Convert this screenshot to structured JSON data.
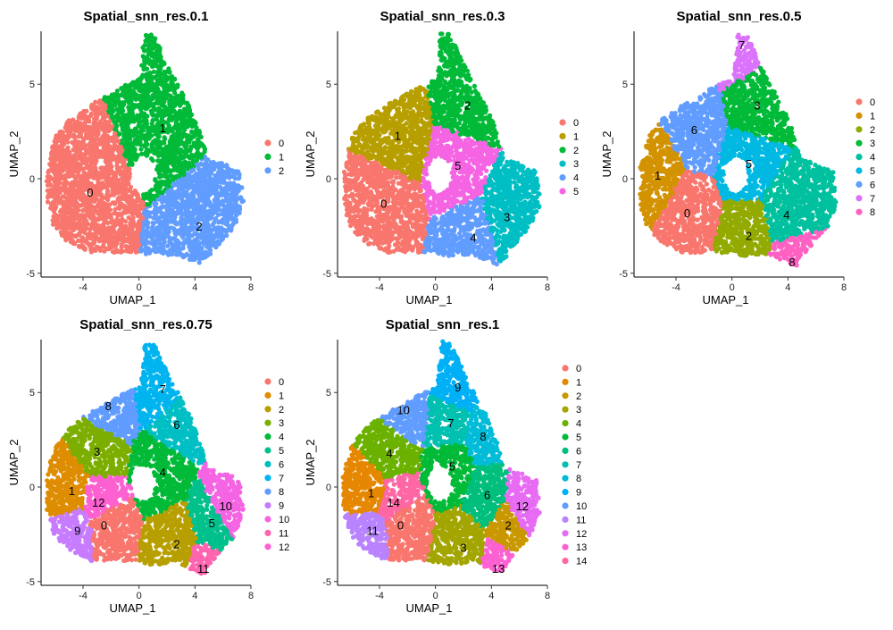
{
  "chart_data": [
    {
      "type": "scatter",
      "title": "Spatial_snn_res.0.1",
      "xlabel": "UMAP_1",
      "ylabel": "UMAP_2",
      "xlim": [
        -7,
        8
      ],
      "ylim": [
        -5.2,
        7.8
      ],
      "xticks": [
        -4,
        0,
        4,
        8
      ],
      "yticks": [
        -5,
        0,
        5
      ],
      "grid": false,
      "legend": "right",
      "clusters": [
        {
          "label": "0",
          "color": "#F8766D",
          "x": -3.5,
          "y": -0.7
        },
        {
          "label": "1",
          "color": "#00BA38",
          "x": 1.7,
          "y": 2.7
        },
        {
          "label": "2",
          "color": "#619CFF",
          "x": 4.3,
          "y": -2.5
        }
      ]
    },
    {
      "type": "scatter",
      "title": "Spatial_snn_res.0.3",
      "xlabel": "UMAP_1",
      "ylabel": "UMAP_2",
      "xlim": [
        -7,
        8
      ],
      "ylim": [
        -5.2,
        7.8
      ],
      "xticks": [
        -4,
        0,
        4,
        8
      ],
      "yticks": [
        -5,
        0,
        5
      ],
      "grid": false,
      "legend": "right",
      "clusters": [
        {
          "label": "0",
          "color": "#F8766D",
          "x": -3.7,
          "y": -1.3
        },
        {
          "label": "1",
          "color": "#B79F00",
          "x": -2.7,
          "y": 2.3
        },
        {
          "label": "2",
          "color": "#00BA38",
          "x": 2.3,
          "y": 3.9
        },
        {
          "label": "3",
          "color": "#00BFC4",
          "x": 5.1,
          "y": -2.0
        },
        {
          "label": "4",
          "color": "#619CFF",
          "x": 2.7,
          "y": -3.1
        },
        {
          "label": "5",
          "color": "#F564E3",
          "x": 1.6,
          "y": 0.7
        }
      ]
    },
    {
      "type": "scatter",
      "title": "Spatial_snn_res.0.5",
      "xlabel": "UMAP_1",
      "ylabel": "UMAP_2",
      "xlim": [
        -7,
        8
      ],
      "ylim": [
        -5.2,
        7.8
      ],
      "xticks": [
        -4,
        0,
        4,
        8
      ],
      "yticks": [
        -5,
        0,
        5
      ],
      "grid": false,
      "legend": "right",
      "clusters": [
        {
          "label": "0",
          "color": "#F8766D",
          "x": -3.2,
          "y": -1.8
        },
        {
          "label": "1",
          "color": "#D39200",
          "x": -5.3,
          "y": 0.2
        },
        {
          "label": "2",
          "color": "#93AA00",
          "x": 1.2,
          "y": -3.0
        },
        {
          "label": "3",
          "color": "#00BA38",
          "x": 1.8,
          "y": 3.9
        },
        {
          "label": "4",
          "color": "#00C19F",
          "x": 3.9,
          "y": -1.9
        },
        {
          "label": "5",
          "color": "#00B9E3",
          "x": 1.2,
          "y": 0.8
        },
        {
          "label": "6",
          "color": "#619CFF",
          "x": -2.7,
          "y": 2.6
        },
        {
          "label": "7",
          "color": "#DB72FB",
          "x": 0.7,
          "y": 7.1
        },
        {
          "label": "8",
          "color": "#FF61C3",
          "x": 4.3,
          "y": -4.4
        }
      ]
    },
    {
      "type": "scatter",
      "title": "Spatial_snn_res.0.75",
      "xlabel": "UMAP_1",
      "ylabel": "UMAP_2",
      "xlim": [
        -7,
        8
      ],
      "ylim": [
        -5.2,
        7.8
      ],
      "xticks": [
        -4,
        0,
        4,
        8
      ],
      "yticks": [
        -5,
        0,
        5
      ],
      "grid": false,
      "legend": "right",
      "clusters": [
        {
          "label": "0",
          "color": "#F8766D",
          "x": -2.5,
          "y": -2.0
        },
        {
          "label": "1",
          "color": "#DE8C00",
          "x": -4.8,
          "y": -0.2
        },
        {
          "label": "2",
          "color": "#B79F00",
          "x": 2.7,
          "y": -3.0
        },
        {
          "label": "3",
          "color": "#7CAE00",
          "x": -3.0,
          "y": 1.9
        },
        {
          "label": "4",
          "color": "#00BA38",
          "x": 1.7,
          "y": 0.8
        },
        {
          "label": "5",
          "color": "#00C08B",
          "x": 5.2,
          "y": -1.9
        },
        {
          "label": "6",
          "color": "#00BFC4",
          "x": 2.7,
          "y": 3.3
        },
        {
          "label": "7",
          "color": "#00B4F0",
          "x": 1.7,
          "y": 5.2
        },
        {
          "label": "8",
          "color": "#619CFF",
          "x": -2.2,
          "y": 4.3
        },
        {
          "label": "9",
          "color": "#C77CFF",
          "x": -4.4,
          "y": -2.3
        },
        {
          "label": "10",
          "color": "#F564E3",
          "x": 6.2,
          "y": -1.0
        },
        {
          "label": "11",
          "color": "#FF64B0",
          "x": 4.6,
          "y": -4.3
        },
        {
          "label": "12",
          "color": "#FD61D1",
          "x": -2.9,
          "y": -0.8
        }
      ]
    },
    {
      "type": "scatter",
      "title": "Spatial_snn_res.1",
      "xlabel": "UMAP_1",
      "ylabel": "UMAP_2",
      "xlim": [
        -7,
        8
      ],
      "ylim": [
        -5.2,
        7.8
      ],
      "xticks": [
        -4,
        0,
        4,
        8
      ],
      "yticks": [
        -5,
        0,
        5
      ],
      "grid": false,
      "legend": "right",
      "clusters": [
        {
          "label": "0",
          "color": "#F8766D",
          "x": -2.5,
          "y": -2.0
        },
        {
          "label": "1",
          "color": "#E58700",
          "x": -4.6,
          "y": -0.3
        },
        {
          "label": "2",
          "color": "#C99800",
          "x": 5.2,
          "y": -2.0
        },
        {
          "label": "3",
          "color": "#A3A500",
          "x": 2.0,
          "y": -3.2
        },
        {
          "label": "4",
          "color": "#6BB100",
          "x": -3.3,
          "y": 1.8
        },
        {
          "label": "5",
          "color": "#00BA38",
          "x": 1.2,
          "y": 1.1
        },
        {
          "label": "6",
          "color": "#00BF7D",
          "x": 3.7,
          "y": -0.4
        },
        {
          "label": "7",
          "color": "#00C0AF",
          "x": 1.1,
          "y": 3.4
        },
        {
          "label": "8",
          "color": "#00BCD8",
          "x": 3.4,
          "y": 2.7
        },
        {
          "label": "9",
          "color": "#00B0F6",
          "x": 1.6,
          "y": 5.3
        },
        {
          "label": "10",
          "color": "#619CFF",
          "x": -2.3,
          "y": 4.1
        },
        {
          "label": "11",
          "color": "#B983FF",
          "x": -4.5,
          "y": -2.3
        },
        {
          "label": "12",
          "color": "#E76BF3",
          "x": 6.2,
          "y": -1.0
        },
        {
          "label": "13",
          "color": "#FD61D1",
          "x": 4.5,
          "y": -4.3
        },
        {
          "label": "14",
          "color": "#FF67A4",
          "x": -3.0,
          "y": -0.8
        }
      ]
    }
  ]
}
